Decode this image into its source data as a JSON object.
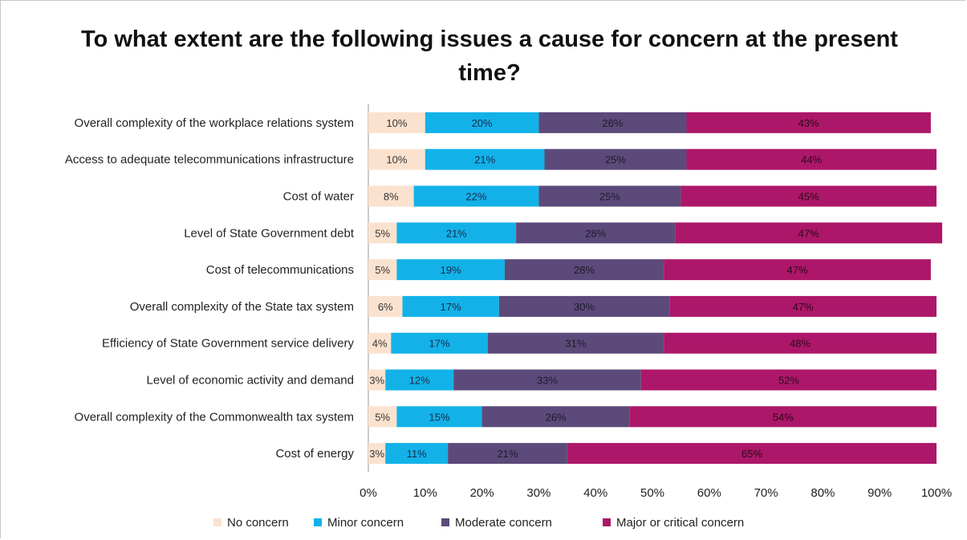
{
  "chart_data": {
    "type": "bar",
    "orientation": "horizontal",
    "stacked": "100%",
    "title": "To what extent are the following issues a cause for concern at the present time?",
    "categories": [
      "Overall complexity of the workplace relations system",
      "Access to adequate telecommunications infrastructure",
      "Cost of water",
      "Level of State Government debt",
      "Cost of telecommunications",
      "Overall complexity of the State tax system",
      "Efficiency of State Government service delivery",
      "Level of economic activity and demand",
      "Overall complexity of the Commonwealth tax system",
      "Cost of energy"
    ],
    "series": [
      {
        "name": "No concern",
        "color": "#fbe2cf",
        "text_color": "#333333",
        "values": [
          10,
          10,
          8,
          5,
          5,
          6,
          4,
          3,
          5,
          3
        ],
        "labels": [
          "10%",
          "10%",
          "8%",
          "5%",
          "5%",
          "6%",
          "4%",
          "3%",
          "5%",
          "3%"
        ]
      },
      {
        "name": "Minor concern",
        "color": "#12b2e8",
        "text_color": "#1a2a4a",
        "values": [
          20,
          21,
          22,
          21,
          19,
          17,
          17,
          12,
          15,
          11
        ],
        "labels": [
          "20%",
          "21%",
          "22%",
          "21%",
          "19%",
          "17%",
          "17%",
          "12%",
          "15%",
          "11%"
        ]
      },
      {
        "name": "Moderate concern",
        "color": "#5c4a7a",
        "text_color": "#1b1b2b",
        "values": [
          26,
          25,
          25,
          28,
          28,
          30,
          31,
          33,
          26,
          21
        ],
        "labels": [
          "26%",
          "25%",
          "25%",
          "28%",
          "28%",
          "30%",
          "31%",
          "33%",
          "26%",
          "21%"
        ]
      },
      {
        "name": "Major or critical concern",
        "color": "#ad1769",
        "text_color": "#2a0a1a",
        "values": [
          43,
          44,
          45,
          47,
          47,
          47,
          48,
          52,
          54,
          65
        ],
        "labels": [
          "43%",
          "44%",
          "45%",
          "47%",
          "47%",
          "47%",
          "48%",
          "52%",
          "54%",
          "65%"
        ]
      }
    ],
    "x_ticks": [
      "0%",
      "10%",
      "20%",
      "30%",
      "40%",
      "50%",
      "60%",
      "70%",
      "80%",
      "90%",
      "100%"
    ],
    "xlim": [
      0,
      100
    ],
    "grid": false,
    "legend_position": "bottom"
  }
}
